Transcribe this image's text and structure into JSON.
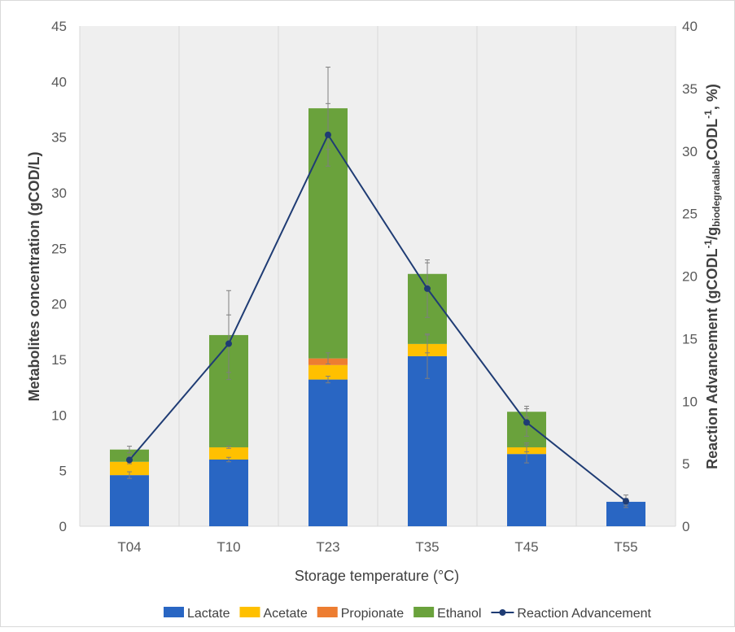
{
  "chart_data": {
    "type": "bar",
    "stacked": true,
    "categories": [
      "T04",
      "T10",
      "T23",
      "T35",
      "T45",
      "T55"
    ],
    "xlabel": "Storage temperature (°C)",
    "ylabel": "Metabolites concentration (gCOD/L)",
    "ylabel_right_parts": [
      "Reaction Advancement (gCODL",
      "-1",
      "/g",
      "biodegradable",
      "CODL",
      "-1",
      ", %)"
    ],
    "ylim": [
      0,
      45
    ],
    "y_ticks": [
      0,
      5,
      10,
      15,
      20,
      25,
      30,
      35,
      40,
      45
    ],
    "y2lim": [
      0,
      40
    ],
    "y2_ticks": [
      0,
      5,
      10,
      15,
      20,
      25,
      30,
      35,
      40
    ],
    "plot_background": "#efefef",
    "grid": "vertical category gridlines",
    "legend_position": "bottom",
    "series": [
      {
        "name": "Lactate",
        "color": "#2966c3",
        "values": [
          4.6,
          6.0,
          13.2,
          15.3,
          6.5,
          2.2
        ]
      },
      {
        "name": "Acetate",
        "color": "#ffc000",
        "values": [
          1.2,
          1.1,
          1.3,
          1.1,
          0.6,
          0.0
        ]
      },
      {
        "name": "Propionate",
        "color": "#ed7d31",
        "values": [
          0.0,
          0.0,
          0.6,
          0.0,
          0.0,
          0.0
        ]
      },
      {
        "name": "Ethanol",
        "color": "#6aa23c",
        "values": [
          1.1,
          10.1,
          22.5,
          6.3,
          3.2,
          0.0
        ]
      }
    ],
    "line_series": {
      "name": "Reaction Advancement",
      "axis": "right",
      "color": "#1f3c74",
      "values": [
        5.3,
        14.6,
        31.3,
        19.0,
        8.3,
        2.0
      ]
    },
    "error_bars": {
      "Lactate": [
        0.3,
        0.2,
        0.3,
        2.0,
        0.8,
        0.3
      ],
      "Acetate": [
        0.0,
        0.1,
        0.0,
        0.8,
        0.4,
        0.0
      ],
      "Propionate": [
        0.0,
        0.0,
        0.5,
        0.0,
        0.0,
        0.0
      ],
      "Ethanol": [
        0.3,
        4.0,
        3.7,
        1.0,
        0.5,
        0.0
      ],
      "Reaction Advancement": [
        0.3,
        2.3,
        2.5,
        2.3,
        1.1,
        0.5
      ]
    }
  }
}
